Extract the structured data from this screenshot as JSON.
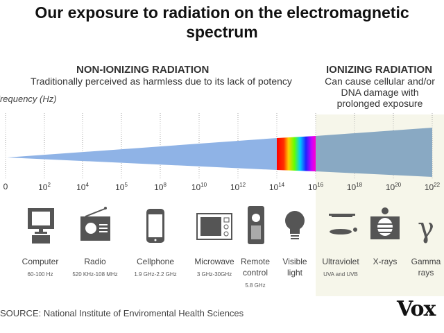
{
  "title": "Our exposure to radiation on the electromagnetic spectrum",
  "non_ionizing": {
    "heading": "NON-IONIZING RADIATION",
    "description": "Traditionally perceived as harmless due to its lack of potency"
  },
  "ionizing": {
    "heading": "IONIZING RADIATION",
    "description_lines": [
      "Can cause cellular and/or",
      "DNA damage with",
      "prolonged exposure"
    ]
  },
  "axis_label": "Frequency (Hz)",
  "ticks": [
    {
      "base": "0",
      "exp": ""
    },
    {
      "base": "10",
      "exp": "2"
    },
    {
      "base": "10",
      "exp": "4"
    },
    {
      "base": "10",
      "exp": "5"
    },
    {
      "base": "10",
      "exp": "8"
    },
    {
      "base": "10",
      "exp": "10"
    },
    {
      "base": "10",
      "exp": "12"
    },
    {
      "base": "10",
      "exp": "14"
    },
    {
      "base": "10",
      "exp": "16"
    },
    {
      "base": "10",
      "exp": "18"
    },
    {
      "base": "10",
      "exp": "20"
    },
    {
      "base": "10",
      "exp": "22"
    }
  ],
  "sources": [
    {
      "name": "Computer",
      "range": "60-100 Hz",
      "icon": "computer-icon"
    },
    {
      "name": "Radio",
      "range": "520 KHz-108 MHz",
      "icon": "radio-icon"
    },
    {
      "name": "Cellphone",
      "range": "1.9 GHz-2.2 GHz",
      "icon": "cellphone-icon"
    },
    {
      "name": "Microwave",
      "range": "3 GHz-30GHz",
      "icon": "microwave-icon"
    },
    {
      "name": "Remote control",
      "range": "5.8 GHz",
      "icon": "remote-control-icon"
    },
    {
      "name": "Visible light",
      "range": "",
      "icon": "light-bulb-icon"
    },
    {
      "name": "Ultraviolet",
      "range": "UVA and UVB",
      "icon": "tanning-bed-icon"
    },
    {
      "name": "X-rays",
      "range": "",
      "icon": "xray-icon"
    },
    {
      "name": "Gamma rays",
      "range": "",
      "icon": "gamma-icon"
    }
  ],
  "source_note": "SOURCE: National Institute of Enviromental Health Sciences",
  "logo": "Vox",
  "colors": {
    "non_ionizing": "#8fb3e6",
    "ionizing": "#89a9c3",
    "ionizing_bg": "#f6f6ea",
    "icon": "#555555"
  }
}
